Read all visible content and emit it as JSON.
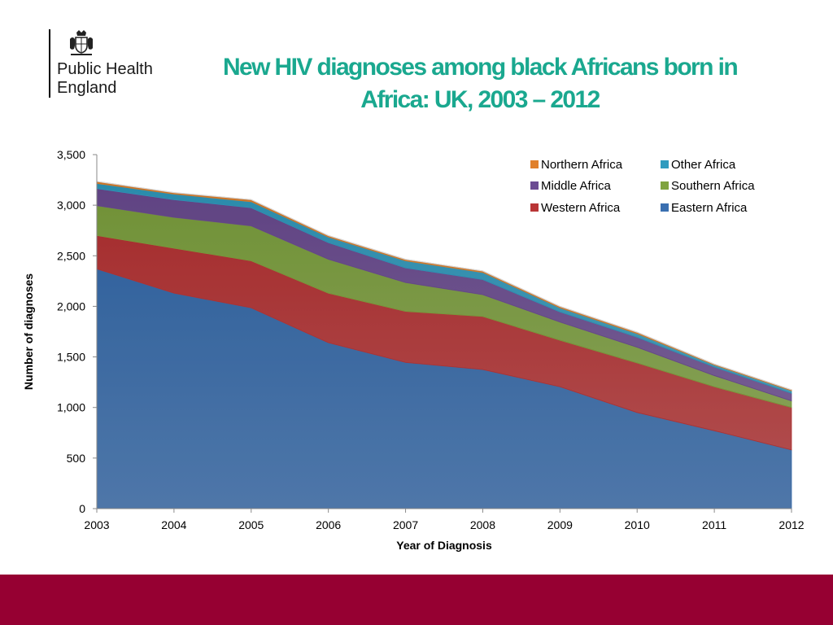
{
  "logo": {
    "lines": [
      "Public Health",
      "England"
    ],
    "crest": "royal-coat-of-arms-icon"
  },
  "title": {
    "lines": [
      "New HIV diagnoses among black Africans born in",
      "Africa: UK, 2003 – 2012"
    ],
    "color": "#1aa88f"
  },
  "footer": {
    "color": "#960032"
  },
  "chart_data": {
    "type": "area",
    "stacked": true,
    "x": [
      2003,
      2004,
      2005,
      2006,
      2007,
      2008,
      2009,
      2010,
      2011,
      2012
    ],
    "xlabel": "Year of Diagnosis",
    "ylabel": "Number of diagnoses",
    "ylim": [
      0,
      3500
    ],
    "yticks": [
      0,
      500,
      1000,
      1500,
      2000,
      2500,
      3000,
      3500
    ],
    "ytick_labels": [
      "0",
      "500",
      "1,000",
      "1,500",
      "2,000",
      "2,500",
      "3,000",
      "3,500"
    ],
    "xtick_labels": [
      "2003",
      "2004",
      "2005",
      "2006",
      "2007",
      "2008",
      "2009",
      "2010",
      "2011",
      "2012"
    ],
    "grid": false,
    "legend_position": "top-right",
    "legend_order": [
      "Northern Africa",
      "Other Africa",
      "Middle Africa",
      "Southern Africa",
      "Western Africa",
      "Eastern Africa"
    ],
    "series": [
      {
        "name": "Eastern Africa",
        "color": "#3a6fb0",
        "values": [
          2370,
          2130,
          1985,
          1640,
          1445,
          1375,
          1205,
          950,
          770,
          580
        ]
      },
      {
        "name": "Western Africa",
        "color": "#b93536",
        "values": [
          330,
          445,
          465,
          490,
          505,
          525,
          460,
          490,
          435,
          420
        ]
      },
      {
        "name": "Southern Africa",
        "color": "#7fa33f",
        "values": [
          295,
          305,
          345,
          335,
          285,
          215,
          180,
          155,
          110,
          65
        ]
      },
      {
        "name": "Middle Africa",
        "color": "#6b4b92",
        "values": [
          170,
          175,
          180,
          165,
          145,
          150,
          100,
          100,
          85,
          75
        ]
      },
      {
        "name": "Other Africa",
        "color": "#2f9bbf",
        "values": [
          50,
          55,
          60,
          55,
          70,
          70,
          40,
          35,
          20,
          25
        ]
      },
      {
        "name": "Northern Africa",
        "color": "#e0802b",
        "values": [
          20,
          15,
          20,
          15,
          15,
          15,
          15,
          15,
          10,
          10
        ]
      }
    ]
  }
}
